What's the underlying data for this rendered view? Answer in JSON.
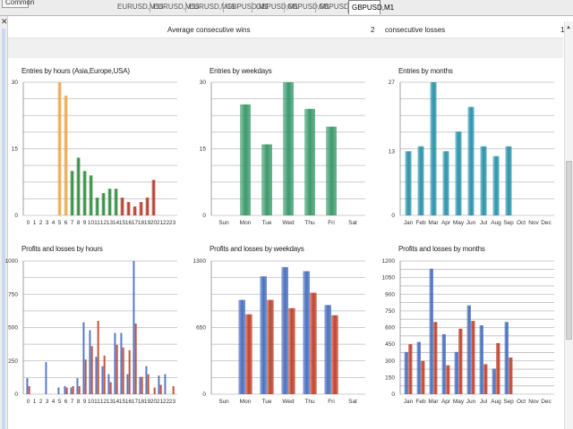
{
  "tabs": [
    {
      "label": "Common",
      "selected": false,
      "first": true
    },
    {
      "label": "EURUSD,M15",
      "selected": false
    },
    {
      "label": "EURUSD,M15",
      "selected": false
    },
    {
      "label": "EURUSD,M15",
      "selected": false
    },
    {
      "label": "GBPUSD,M1",
      "selected": false
    },
    {
      "label": "GBPUSD,M1",
      "selected": false
    },
    {
      "label": "GBPUSD,M1",
      "selected": false
    },
    {
      "label": "GBPUSD,M1",
      "selected": false
    },
    {
      "label": "GBPUSD,M1",
      "selected": true
    }
  ],
  "stats": {
    "average_label": "Average",
    "wins_label": "consecutive wins",
    "wins_value": "2",
    "losses_label": "consecutive losses",
    "losses_value": "1"
  },
  "icons": {
    "close": "close-icon",
    "scroll_up": "scroll-up-icon"
  },
  "colors": {
    "orange": "#e9a94c",
    "green": "#2f8a3c",
    "darkred": "#b33a2a",
    "teal_green": "#3c9a6c",
    "teal": "#2a93aa",
    "blue": "#4a70c0",
    "red": "#c0442e"
  },
  "chart_data": [
    {
      "type": "bar",
      "title": "Entries by hours (Asia,Europe,USA)",
      "categories": [
        "0",
        "1",
        "2",
        "3",
        "4",
        "5",
        "6",
        "7",
        "8",
        "9",
        "10",
        "11",
        "12",
        "13",
        "14",
        "15",
        "16",
        "17",
        "18",
        "19",
        "20",
        "21",
        "22",
        "23"
      ],
      "values": [
        0,
        0,
        0,
        0,
        0,
        30,
        27,
        10,
        13,
        10,
        9,
        4,
        5,
        6,
        6,
        4,
        3,
        2,
        3,
        4,
        8,
        0,
        0,
        0
      ],
      "colors": [
        "#e9a94c",
        "#e9a94c",
        "#e9a94c",
        "#e9a94c",
        "#e9a94c",
        "#e9a94c",
        "#e9a94c",
        "#2f8a3c",
        "#2f8a3c",
        "#2f8a3c",
        "#2f8a3c",
        "#2f8a3c",
        "#2f8a3c",
        "#2f8a3c",
        "#2f8a3c",
        "#b33a2a",
        "#b33a2a",
        "#b33a2a",
        "#b33a2a",
        "#b33a2a",
        "#b33a2a",
        "#b33a2a",
        "#b33a2a",
        "#b33a2a"
      ],
      "yticks": [
        "0",
        "15",
        "30"
      ],
      "ylim": [
        0,
        30
      ],
      "grid": true
    },
    {
      "type": "bar",
      "title": "Entries by weekdays",
      "categories": [
        "Sun",
        "Mon",
        "Tue",
        "Wed",
        "Thu",
        "Fri",
        "Sat"
      ],
      "values": [
        0,
        25,
        16,
        30,
        24,
        20,
        0
      ],
      "colors": [
        "#3c9a6c",
        "#3c9a6c",
        "#3c9a6c",
        "#3c9a6c",
        "#3c9a6c",
        "#3c9a6c",
        "#3c9a6c"
      ],
      "yticks": [
        "0",
        "15",
        "30"
      ],
      "ylim": [
        0,
        30
      ],
      "grid": true
    },
    {
      "type": "bar",
      "title": "Entries by months",
      "categories": [
        "Jan",
        "Feb",
        "Mar",
        "Apr",
        "May",
        "Jun",
        "Jul",
        "Aug",
        "Sep",
        "Oct",
        "Nov",
        "Dec"
      ],
      "values": [
        13,
        14,
        27,
        13,
        17,
        22,
        14,
        12,
        14,
        0,
        0,
        0
      ],
      "colors": [
        "#2a93aa",
        "#2a93aa",
        "#2a93aa",
        "#2a93aa",
        "#2a93aa",
        "#2a93aa",
        "#2a93aa",
        "#2a93aa",
        "#2a93aa",
        "#2a93aa",
        "#2a93aa",
        "#2a93aa"
      ],
      "yticks": [
        "0",
        "13",
        "27"
      ],
      "ylim": [
        0,
        27
      ],
      "grid": true
    },
    {
      "type": "bar",
      "title": "Profits and losses by hours",
      "categories": [
        "0",
        "1",
        "2",
        "3",
        "4",
        "5",
        "6",
        "7",
        "8",
        "9",
        "10",
        "11",
        "12",
        "13",
        "14",
        "15",
        "16",
        "17",
        "18",
        "19",
        "20",
        "21",
        "22",
        "23"
      ],
      "series": [
        {
          "values": [
            120,
            0,
            0,
            240,
            0,
            50,
            60,
            50,
            120,
            540,
            480,
            280,
            210,
            150,
            460,
            460,
            150,
            1000,
            130,
            210,
            0,
            140,
            150,
            0
          ]
        },
        {
          "values": [
            60,
            0,
            0,
            0,
            0,
            0,
            50,
            60,
            60,
            260,
            360,
            550,
            290,
            90,
            370,
            350,
            330,
            530,
            130,
            150,
            50,
            70,
            0,
            60
          ]
        }
      ],
      "series_colors": [
        "#4a70c0",
        "#c0442e"
      ],
      "yticks": [
        "0",
        "250",
        "500",
        "750",
        "1000"
      ],
      "ylim": [
        0,
        1000
      ],
      "grid": true
    },
    {
      "type": "bar",
      "title": "Profits and losses by weekdays",
      "categories": [
        "Sun",
        "Mon",
        "Tue",
        "Wed",
        "Thu",
        "Fri",
        "Sat"
      ],
      "series": [
        {
          "values": [
            0,
            920,
            1150,
            1240,
            1200,
            870,
            0
          ]
        },
        {
          "values": [
            0,
            780,
            920,
            840,
            990,
            770,
            0
          ]
        }
      ],
      "series_colors": [
        "#4a70c0",
        "#c0442e"
      ],
      "yticks": [
        "0",
        "650",
        "1300"
      ],
      "ylim": [
        0,
        1300
      ],
      "grid": true
    },
    {
      "type": "bar",
      "title": "Profits and losses by months",
      "categories": [
        "Jan",
        "Feb",
        "Mar",
        "Apr",
        "May",
        "Jun",
        "Jul",
        "Aug",
        "Sep",
        "Oct",
        "Nov",
        "Dec"
      ],
      "series": [
        {
          "values": [
            380,
            470,
            1130,
            540,
            380,
            800,
            620,
            230,
            650,
            0,
            0,
            0
          ]
        },
        {
          "values": [
            450,
            300,
            650,
            260,
            590,
            660,
            270,
            460,
            330,
            0,
            0,
            0
          ]
        }
      ],
      "series_colors": [
        "#4a70c0",
        "#c0442e"
      ],
      "yticks": [
        "0",
        "150",
        "300",
        "450",
        "600",
        "750",
        "900",
        "1050",
        "1200"
      ],
      "ylim": [
        0,
        1200
      ],
      "grid": true
    }
  ]
}
